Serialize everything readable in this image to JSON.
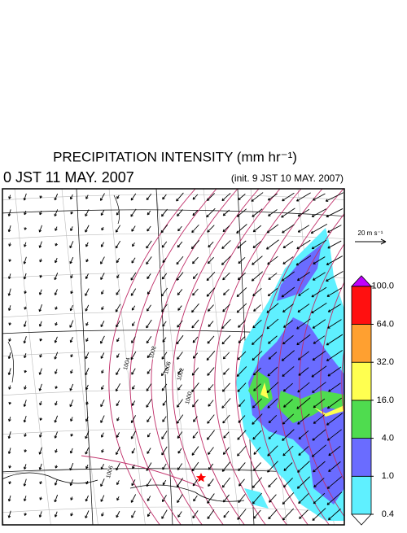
{
  "title": "PRECIPITATION INTENSITY (mm hr⁻¹)",
  "valid_time": "0 JST 11 MAY. 2007",
  "init_time": "(init. 9 JST 10 MAY. 2007)",
  "vector_scale": "20 m s⁻¹",
  "isobar_labels": [
    "1004",
    "1008",
    "1006",
    "1002",
    "1000",
    "1006"
  ],
  "colorbar": {
    "levels": [
      0.4,
      {
        "value": 1,
        "label": "1.0"
      },
      {
        "value": 4,
        "label": "4.0"
      },
      {
        "value": 16,
        "label": "16.0"
      },
      {
        "value": 32,
        "label": "32.0"
      },
      {
        "value": 64,
        "label": "64.0"
      },
      {
        "value": 100,
        "label": "100.0"
      }
    ],
    "colors": [
      "#5ff0ff",
      "#6a6cff",
      "#4fdc4f",
      "#ffff50",
      "#ffa030",
      "#ff1010"
    ],
    "under_color": "#ffffff",
    "over_color": "#c000ff"
  }
}
